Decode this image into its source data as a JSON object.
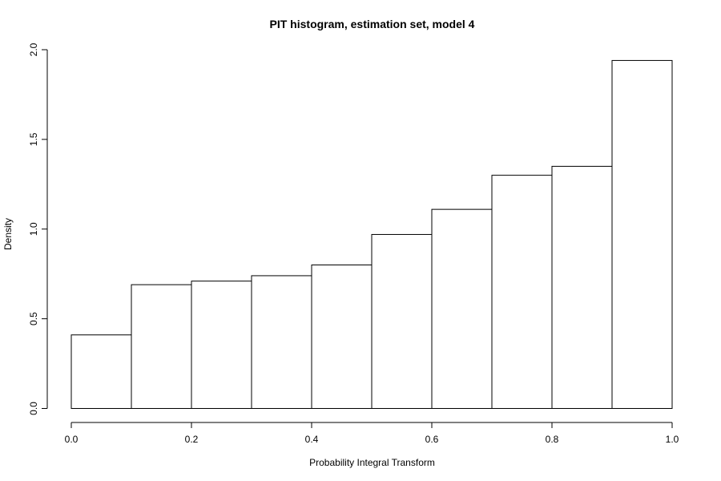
{
  "chart_data": {
    "type": "bar",
    "title": "PIT histogram, estimation set, model 4",
    "xlabel": "Probability Integral Transform",
    "ylabel": "Density",
    "bins": [
      {
        "start": 0.0,
        "end": 0.1,
        "density": 0.41
      },
      {
        "start": 0.1,
        "end": 0.2,
        "density": 0.69
      },
      {
        "start": 0.2,
        "end": 0.3,
        "density": 0.71
      },
      {
        "start": 0.3,
        "end": 0.4,
        "density": 0.74
      },
      {
        "start": 0.4,
        "end": 0.5,
        "density": 0.8
      },
      {
        "start": 0.5,
        "end": 0.6,
        "density": 0.97
      },
      {
        "start": 0.6,
        "end": 0.7,
        "density": 1.11
      },
      {
        "start": 0.7,
        "end": 0.8,
        "density": 1.3
      },
      {
        "start": 0.8,
        "end": 0.9,
        "density": 1.35
      },
      {
        "start": 0.9,
        "end": 1.0,
        "density": 1.94
      }
    ],
    "xlim": [
      0.0,
      1.0
    ],
    "ylim": [
      0.0,
      2.0
    ],
    "xticks": [
      "0.0",
      "0.2",
      "0.4",
      "0.6",
      "0.8",
      "1.0"
    ],
    "yticks": [
      "0.0",
      "0.5",
      "1.0",
      "1.5",
      "2.0"
    ],
    "grid": false,
    "legend": "none",
    "colors": {
      "bar_fill": "#ffffff",
      "bar_stroke": "#000000",
      "axis": "#000000",
      "background": "#ffffff"
    }
  }
}
